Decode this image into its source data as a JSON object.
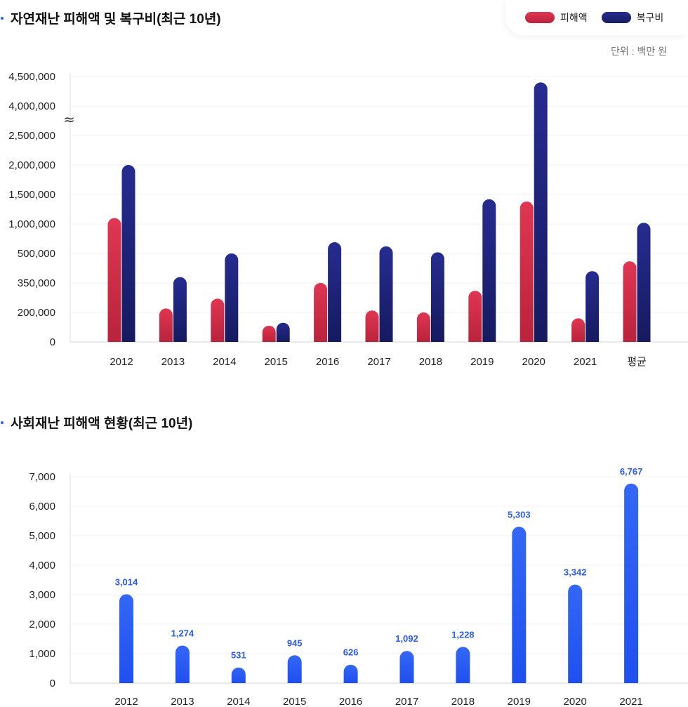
{
  "chart_data": [
    {
      "type": "bar",
      "title": "자연재난 피해액 및 복구비(최근 10년)",
      "unit_note": "단위 : 백만 원",
      "categories": [
        "2012",
        "2013",
        "2014",
        "2015",
        "2016",
        "2017",
        "2018",
        "2019",
        "2020",
        "2021",
        "평균"
      ],
      "y_ticks": [
        "0",
        "200,000",
        "350,000",
        "500,000",
        "1,000,000",
        "1,500,000",
        "2,000,000",
        "2,500,000",
        "4,000,000",
        "4,500,000"
      ],
      "y_tick_values": [
        0,
        200000,
        350000,
        500000,
        1000000,
        1500000,
        2000000,
        2500000,
        4000000,
        4500000
      ],
      "axis_break_symbol": "≈",
      "grid": true,
      "legend_position": "top-right",
      "series": [
        {
          "name": "피해액",
          "color": "#d42e4a",
          "values": [
            1100000,
            220000,
            270000,
            110000,
            350000,
            210000,
            200000,
            310000,
            1380000,
            160000,
            460000
          ]
        },
        {
          "name": "복구비",
          "color": "#1e247c",
          "values": [
            2000000,
            380000,
            500000,
            130000,
            690000,
            620000,
            520000,
            1420000,
            4400000,
            410000,
            1020000
          ]
        }
      ]
    },
    {
      "type": "bar",
      "title": "사회재난 피해액 현황(최근 10년)",
      "categories": [
        "2012",
        "2013",
        "2014",
        "2015",
        "2016",
        "2017",
        "2018",
        "2019",
        "2020",
        "2021"
      ],
      "ylim": [
        0,
        7000
      ],
      "y_ticks": [
        "0",
        "1,000",
        "2,000",
        "3,000",
        "4,000",
        "5,000",
        "6,000",
        "7,000"
      ],
      "grid": true,
      "series": [
        {
          "name": "",
          "color": "#2b5cf0",
          "values": [
            3014,
            1274,
            531,
            945,
            626,
            1092,
            1228,
            5303,
            3342,
            6767
          ],
          "labels": [
            "3,014",
            "1,274",
            "531",
            "945",
            "626",
            "1,092",
            "1,228",
            "5,303",
            "3,342",
            "6,767"
          ]
        }
      ]
    }
  ]
}
